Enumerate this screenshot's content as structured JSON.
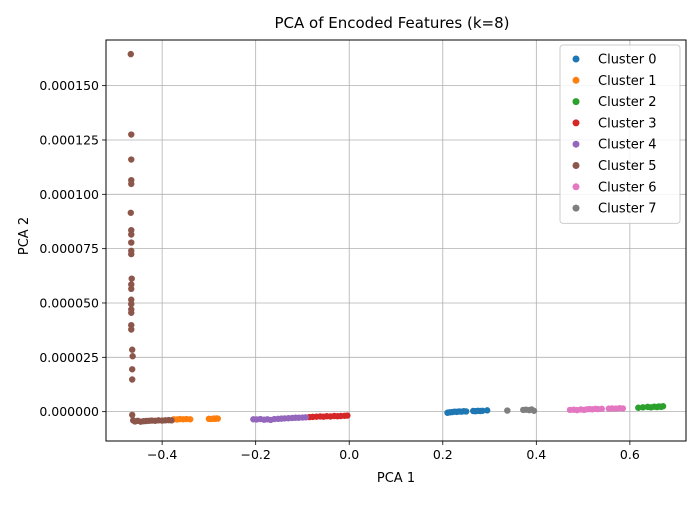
{
  "chart_data": {
    "type": "scatter",
    "title": "PCA of Encoded Features (k=8)",
    "xlabel": "PCA 1",
    "ylabel": "PCA 2",
    "xlim": [
      -0.52,
      0.72
    ],
    "ylim": [
      -1.35e-05,
      0.000171
    ],
    "xticks": [
      -0.4,
      -0.2,
      0.0,
      0.2,
      0.4,
      0.6
    ],
    "xtick_labels": [
      "−0.4",
      "−0.2",
      "0.0",
      "0.2",
      "0.4",
      "0.6"
    ],
    "yticks": [
      0.0,
      2.5e-05,
      5e-05,
      7.5e-05,
      0.0001,
      0.000125,
      0.00015
    ],
    "ytick_labels": [
      "0.000000",
      "0.000025",
      "0.000050",
      "0.000075",
      "0.000100",
      "0.000125",
      "0.000150"
    ],
    "grid": true,
    "legend_position": "top-right",
    "series": [
      {
        "name": "Cluster 0",
        "color": "#1f77b4",
        "points": [
          [
            0.21,
            -5e-07
          ],
          [
            0.215,
            -3e-07
          ],
          [
            0.22,
            -2e-07
          ],
          [
            0.225,
            0.0
          ],
          [
            0.23,
            -1e-07
          ],
          [
            0.235,
            1e-07
          ],
          [
            0.24,
            0.0
          ],
          [
            0.245,
            2e-07
          ],
          [
            0.25,
            1e-07
          ],
          [
            0.265,
            3e-07
          ],
          [
            0.27,
            2e-07
          ],
          [
            0.275,
            4e-07
          ],
          [
            0.28,
            3e-07
          ],
          [
            0.285,
            4e-07
          ],
          [
            0.295,
            6e-07
          ]
        ]
      },
      {
        "name": "Cluster 1",
        "color": "#ff7f0e",
        "points": [
          [
            -0.375,
            -3.5e-06
          ],
          [
            -0.368,
            -3.6e-06
          ],
          [
            -0.362,
            -3.4e-06
          ],
          [
            -0.355,
            -3.5e-06
          ],
          [
            -0.348,
            -3.4e-06
          ],
          [
            -0.34,
            -3.5e-06
          ],
          [
            -0.3,
            -3.3e-06
          ],
          [
            -0.295,
            -3.4e-06
          ],
          [
            -0.29,
            -3.2e-06
          ],
          [
            -0.287,
            -3.3e-06
          ],
          [
            -0.284,
            -3.1e-06
          ],
          [
            -0.281,
            -3.2e-06
          ]
        ]
      },
      {
        "name": "Cluster 2",
        "color": "#2ca02c",
        "points": [
          [
            0.618,
            1.8e-06
          ],
          [
            0.628,
            2e-06
          ],
          [
            0.638,
            2.2e-06
          ],
          [
            0.645,
            2e-06
          ],
          [
            0.652,
            2.3e-06
          ],
          [
            0.658,
            2.1e-06
          ],
          [
            0.662,
            2.4e-06
          ],
          [
            0.667,
            2.2e-06
          ],
          [
            0.671,
            2.5e-06
          ]
        ]
      },
      {
        "name": "Cluster 3",
        "color": "#d62728",
        "points": [
          [
            -0.085,
            -2.5e-06
          ],
          [
            -0.078,
            -2.4e-06
          ],
          [
            -0.07,
            -2.3e-06
          ],
          [
            -0.062,
            -2.2e-06
          ],
          [
            -0.055,
            -2.3e-06
          ],
          [
            -0.048,
            -2.1e-06
          ],
          [
            -0.04,
            -2.2e-06
          ],
          [
            -0.032,
            -2e-06
          ],
          [
            -0.025,
            -2.1e-06
          ],
          [
            -0.018,
            -2e-06
          ],
          [
            -0.01,
            -1.9e-06
          ],
          [
            -0.004,
            -1.8e-06
          ]
        ]
      },
      {
        "name": "Cluster 4",
        "color": "#9467bd",
        "points": [
          [
            -0.205,
            -3.5e-06
          ],
          [
            -0.198,
            -3.6e-06
          ],
          [
            -0.19,
            -3.4e-06
          ],
          [
            -0.182,
            -3.7e-06
          ],
          [
            -0.175,
            -3.5e-06
          ],
          [
            -0.168,
            -3.8e-06
          ],
          [
            -0.16,
            -3.4e-06
          ],
          [
            -0.152,
            -3.3e-06
          ],
          [
            -0.145,
            -3.2e-06
          ],
          [
            -0.138,
            -3.1e-06
          ],
          [
            -0.13,
            -3e-06
          ],
          [
            -0.122,
            -2.9e-06
          ],
          [
            -0.115,
            -2.8e-06
          ],
          [
            -0.108,
            -2.8e-06
          ],
          [
            -0.1,
            -2.7e-06
          ],
          [
            -0.093,
            -2.6e-06
          ]
        ]
      },
      {
        "name": "Cluster 5",
        "color": "#8c564b",
        "points": [
          [
            -0.467,
            0.0001645
          ],
          [
            -0.466,
            0.0001275
          ],
          [
            -0.466,
            0.000116
          ],
          [
            -0.466,
            0.0001065
          ],
          [
            -0.466,
            0.0001048
          ],
          [
            -0.467,
            9.15e-05
          ],
          [
            -0.466,
            8.35e-05
          ],
          [
            -0.466,
            8.15e-05
          ],
          [
            -0.466,
            7.78e-05
          ],
          [
            -0.466,
            7.4e-05
          ],
          [
            -0.466,
            7.25e-05
          ],
          [
            -0.465,
            6.12e-05
          ],
          [
            -0.466,
            5.85e-05
          ],
          [
            -0.466,
            5.65e-05
          ],
          [
            -0.466,
            5.15e-05
          ],
          [
            -0.466,
            4.95e-05
          ],
          [
            -0.466,
            4.7e-05
          ],
          [
            -0.466,
            4.55e-05
          ],
          [
            -0.466,
            3.98e-05
          ],
          [
            -0.466,
            3.78e-05
          ],
          [
            -0.464,
            2.85e-05
          ],
          [
            -0.463,
            2.55e-05
          ],
          [
            -0.464,
            1.95e-05
          ],
          [
            -0.464,
            1.48e-05
          ],
          [
            -0.464,
            -1.5e-06
          ],
          [
            -0.462,
            -4e-06
          ],
          [
            -0.458,
            -4.5e-06
          ],
          [
            -0.452,
            -4.2e-06
          ],
          [
            -0.446,
            -4.6e-06
          ],
          [
            -0.44,
            -4.4e-06
          ],
          [
            -0.434,
            -4.3e-06
          ],
          [
            -0.428,
            -4.2e-06
          ],
          [
            -0.422,
            -4.1e-06
          ],
          [
            -0.415,
            -4.2e-06
          ],
          [
            -0.408,
            -4e-06
          ],
          [
            -0.4,
            -4.1e-06
          ],
          [
            -0.393,
            -4e-06
          ],
          [
            -0.386,
            -3.9e-06
          ],
          [
            -0.38,
            -4e-06
          ]
        ]
      },
      {
        "name": "Cluster 6",
        "color": "#e377c2",
        "points": [
          [
            0.472,
            8e-07
          ],
          [
            0.48,
            9e-07
          ],
          [
            0.487,
            7e-07
          ],
          [
            0.495,
            1e-06
          ],
          [
            0.502,
            8e-07
          ],
          [
            0.508,
            1.1e-06
          ],
          [
            0.514,
            1.2e-06
          ],
          [
            0.52,
            1.1e-06
          ],
          [
            0.526,
            1.3e-06
          ],
          [
            0.532,
            1.2e-06
          ],
          [
            0.54,
            1.3e-06
          ],
          [
            0.555,
            1.4e-06
          ],
          [
            0.562,
            1.5e-06
          ],
          [
            0.57,
            1.4e-06
          ],
          [
            0.578,
            1.6e-06
          ],
          [
            0.585,
            1.5e-06
          ]
        ]
      },
      {
        "name": "Cluster 7",
        "color": "#7f7f7f",
        "points": [
          [
            0.338,
            5e-07
          ],
          [
            0.372,
            8e-07
          ],
          [
            0.378,
            9e-07
          ],
          [
            0.385,
            7e-07
          ],
          [
            0.39,
            1e-06
          ],
          [
            0.395,
            4e-07
          ]
        ]
      }
    ]
  }
}
